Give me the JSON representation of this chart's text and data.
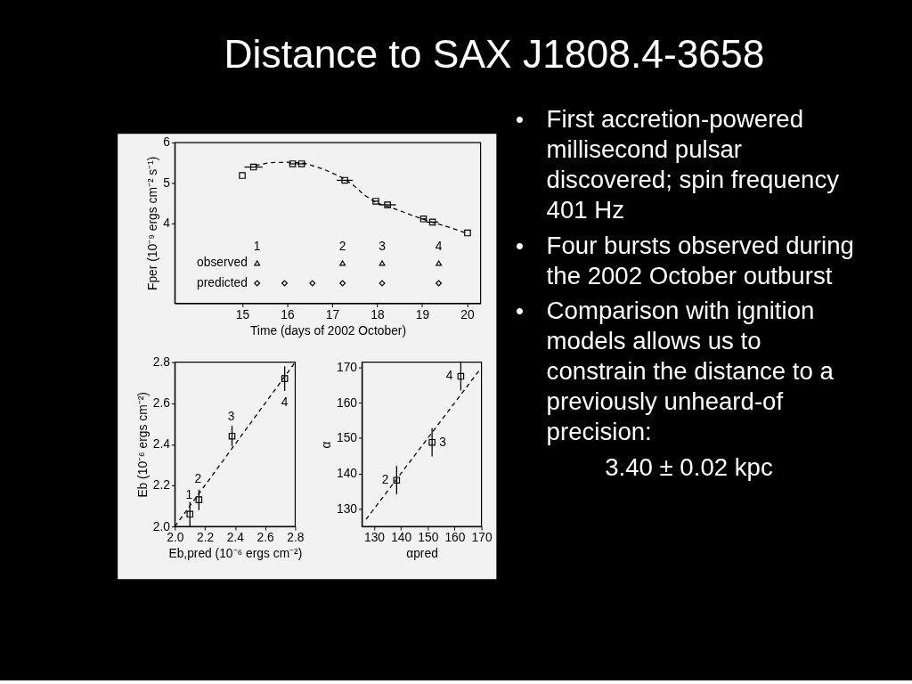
{
  "chart_data": [
    {
      "type": "scatter",
      "title": "Distance to SAX J1808.4-3658",
      "xlabel": "Time (days of 2002 October)",
      "ylabel": "Fper (10⁻⁹ ergs cm⁻² s⁻¹)",
      "xlim": [
        13.5,
        20.3
      ],
      "ylim": [
        2,
        6
      ],
      "xticks": [
        15,
        16,
        17,
        18,
        19,
        20
      ],
      "yticks": [
        4,
        5,
        6
      ],
      "series": [
        {
          "type": "line",
          "color": "#000000",
          "line_style": "dashed",
          "marker": "none",
          "x": [
            15.29,
            15.62,
            16.02,
            16.41,
            16.8,
            17.2,
            17.46,
            17.72,
            17.98,
            18.37,
            18.77,
            19.16,
            19.55,
            19.95
          ],
          "values": [
            5.43,
            5.5,
            5.51,
            5.48,
            5.34,
            5.14,
            4.95,
            4.69,
            4.5,
            4.36,
            4.19,
            4.04,
            3.91,
            3.76
          ]
        },
        {
          "type": "scatter",
          "color": "#000000",
          "marker": "square",
          "x": [
            15.0,
            15.25,
            16.12,
            16.32,
            17.28,
            17.97,
            18.23,
            19.03,
            19.23,
            20.01
          ],
          "values": [
            5.18,
            5.39,
            5.47,
            5.47,
            5.06,
            4.54,
            4.45,
            4.1,
            4.02,
            3.75
          ],
          "xerrors": [
            null,
            0.2,
            0.08,
            0.1,
            0.18,
            0.06,
            0.19,
            0.06,
            0.13,
            null
          ]
        },
        {
          "type": "scatter",
          "name": "observed",
          "color": "#000000",
          "marker": "triangle",
          "x": [
            15.33,
            17.23,
            18.11,
            19.37
          ],
          "values": [
            3,
            3,
            3,
            3
          ]
        },
        {
          "type": "scatter",
          "name": "predicted",
          "color": "#000000",
          "marker": "diamond",
          "x": [
            15.33,
            15.94,
            16.56,
            17.23,
            18.11,
            19.37
          ],
          "values": [
            2.5,
            2.5,
            2.5,
            2.5,
            2.5,
            2.5
          ]
        }
      ],
      "annotations": [
        {
          "text": "1",
          "x": 15.33,
          "y": 3
        },
        {
          "text": "2",
          "x": 17.23,
          "y": 3
        },
        {
          "text": "3",
          "x": 18.11,
          "y": 3
        },
        {
          "text": "4",
          "x": 19.37,
          "y": 3
        }
      ]
    },
    {
      "type": "scatter",
      "xlabel": "Eb,pred (10⁻⁶ ergs cm⁻²)",
      "ylabel": "Eb (10⁻⁶ ergs cm⁻²)",
      "xlim": [
        2,
        2.8
      ],
      "ylim": [
        2,
        2.8
      ],
      "xticks": [
        {
          "value": 2,
          "label": "2.0"
        },
        2.2,
        2.4,
        2.6,
        2.8
      ],
      "yticks": [
        {
          "value": 2,
          "label": "2.0"
        },
        2.2,
        2.4,
        2.6,
        2.8
      ],
      "series": [
        {
          "type": "line",
          "color": "#000000",
          "line_style": "dashed",
          "marker": "none",
          "x": [
            2,
            2.8
          ],
          "values": [
            2,
            2.8
          ]
        },
        {
          "type": "scatter",
          "color": "#000000",
          "marker": "square",
          "x": [
            2.1,
            2.16,
            2.38,
            2.73
          ],
          "values": [
            2.06,
            2.13,
            2.44,
            2.72
          ],
          "errors": [
            0.06,
            0.05,
            0.05,
            0.06
          ]
        }
      ],
      "annotations": [
        {
          "text": "1",
          "x": 2.1,
          "y": 2.06
        },
        {
          "text": "2",
          "x": 2.16,
          "y": 2.13
        },
        {
          "text": "3",
          "x": 2.38,
          "y": 2.44
        },
        {
          "text": "4",
          "x": 2.73,
          "y": 2.72
        }
      ]
    },
    {
      "type": "scatter",
      "xlabel": "αpred",
      "ylabel": "α",
      "xlim": [
        125.5,
        170
      ],
      "ylim": [
        125,
        171.5
      ],
      "xticks": [
        130,
        140,
        150,
        160,
        170
      ],
      "yticks": [
        130,
        140,
        150,
        160,
        170
      ],
      "series": [
        {
          "type": "line",
          "color": "#000000",
          "line_style": "dashed",
          "marker": "none",
          "x": [
            127,
            169
          ],
          "values": [
            127,
            169
          ]
        },
        {
          "type": "scatter",
          "color": "#000000",
          "marker": "square",
          "x": [
            138.4,
            151.6,
            162.3
          ],
          "values": [
            138.1,
            148.8,
            167.5
          ],
          "errors": [
            4,
            4,
            4
          ]
        }
      ],
      "annotations": [
        {
          "text": "2",
          "x": 138.4,
          "y": 138.1
        },
        {
          "text": "3",
          "x": 151.6,
          "y": 148.8
        },
        {
          "text": "4",
          "x": 162.3,
          "y": 167.5
        }
      ]
    },
    {
      "type": "other",
      "annotations": [
        "• First accretion-powered millisecond pulsar discovered; spin frequency 401 Hz",
        "• Four bursts observed during the 2002 October outburst",
        "• Comparison with ignition models allows us to constrain the distance to a previously unheard-of precision:",
        "3.40 ± 0.02 kpc"
      ]
    }
  ]
}
